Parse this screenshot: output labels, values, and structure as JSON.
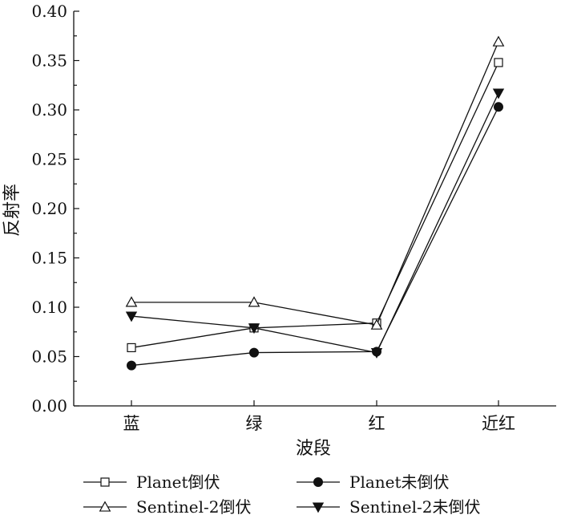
{
  "chart_data": {
    "type": "line",
    "title": "",
    "xlabel": "波段",
    "ylabel": "反射率",
    "categories": [
      "蓝",
      "绿",
      "红",
      "近红"
    ],
    "ylim": [
      0,
      0.4
    ],
    "yticks": [
      "0.00",
      "0.05",
      "0.10",
      "0.15",
      "0.20",
      "0.25",
      "0.30",
      "0.35",
      "0.40"
    ],
    "grid": false,
    "legend_position": "bottom",
    "series": [
      {
        "name": "Planet倒伏",
        "marker": "square-open",
        "values": [
          0.059,
          0.079,
          0.084,
          0.348
        ]
      },
      {
        "name": "Planet未倒伏",
        "marker": "circle-filled",
        "values": [
          0.041,
          0.054,
          0.055,
          0.303
        ]
      },
      {
        "name": "Sentinel-2倒伏",
        "marker": "triangle-up-open",
        "values": [
          0.105,
          0.105,
          0.082,
          0.369
        ]
      },
      {
        "name": "Sentinel-2未倒伏",
        "marker": "triangle-down-filled",
        "values": [
          0.091,
          0.079,
          0.054,
          0.317
        ]
      }
    ]
  }
}
